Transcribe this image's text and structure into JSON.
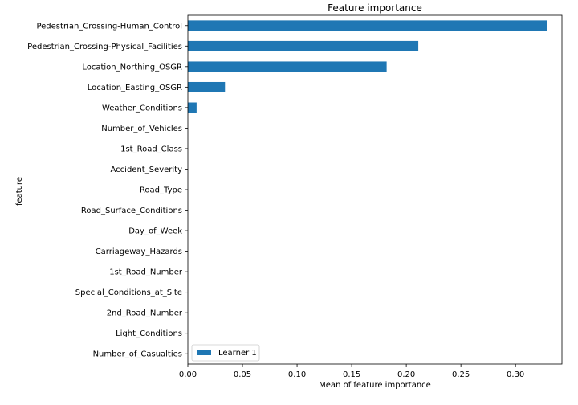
{
  "chart_data": {
    "type": "bar",
    "orientation": "horizontal",
    "title": "Feature importance",
    "xlabel": "Mean of feature importance",
    "ylabel": "feature",
    "xlim": [
      0,
      0.3425
    ],
    "xticks": [
      0.0,
      0.05,
      0.1,
      0.15,
      0.2,
      0.25,
      0.3
    ],
    "xtick_labels": [
      "0.00",
      "0.05",
      "0.10",
      "0.15",
      "0.20",
      "0.25",
      "0.30"
    ],
    "grid": false,
    "legend_position": "bottom-left",
    "categories": [
      "Pedestrian_Crossing-Human_Control",
      "Pedestrian_Crossing-Physical_Facilities",
      "Location_Northing_OSGR",
      "Location_Easting_OSGR",
      "Weather_Conditions",
      "Number_of_Vehicles",
      "1st_Road_Class",
      "Accident_Severity",
      "Road_Type",
      "Road_Surface_Conditions",
      "Day_of_Week",
      "Carriageway_Hazards",
      "1st_Road_Number",
      "Special_Conditions_at_Site",
      "2nd_Road_Number",
      "Light_Conditions",
      "Number_of_Casualties"
    ],
    "series": [
      {
        "name": "Learner 1",
        "color": "#1f77b4",
        "values": [
          0.329,
          0.211,
          0.182,
          0.034,
          0.008,
          0.0,
          0.0,
          0.0,
          0.0,
          0.0,
          0.0,
          0.0,
          0.0,
          0.0,
          0.0,
          0.0,
          0.0
        ]
      }
    ]
  }
}
